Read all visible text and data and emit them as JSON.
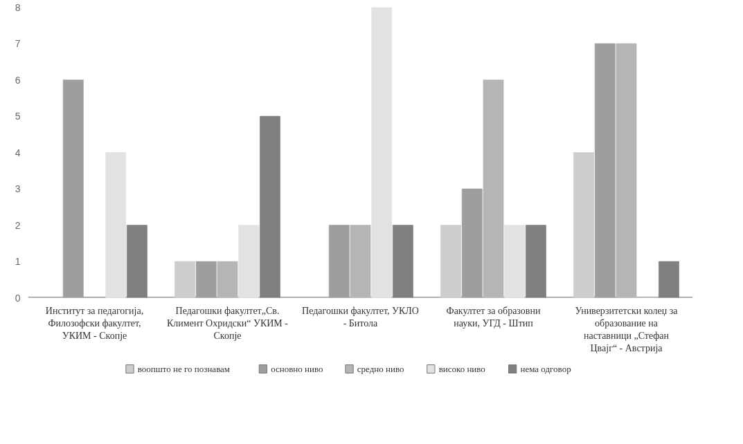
{
  "chart_data": {
    "type": "bar",
    "categories": [
      "Институт за педагогија, Филозофски факултет, УКИМ - Скопје",
      "Педагошки факултет„Св. Климент Охридски“ УКИМ - Скопје",
      "Педагошки факултет, УКЛО - Битола",
      "Факултет за образовни науки, УГД - Штип",
      "Универзитетски колеџ за образование на наставници „Стефан Цвајг“ - Австрија"
    ],
    "series": [
      {
        "name": "воопшто не го познавам",
        "color": "#cccccc",
        "values": [
          0,
          1,
          0,
          2,
          4
        ]
      },
      {
        "name": "основно ниво",
        "color": "#9e9e9e",
        "values": [
          6,
          1,
          2,
          3,
          7
        ]
      },
      {
        "name": "средно ниво",
        "color": "#b5b5b5",
        "values": [
          0,
          1,
          2,
          6,
          7
        ]
      },
      {
        "name": "високо ниво",
        "color": "#e2e2e2",
        "values": [
          4,
          2,
          8,
          2,
          0
        ]
      },
      {
        "name": "нема одговор",
        "color": "#7f7f7f",
        "values": [
          2,
          5,
          2,
          2,
          1
        ]
      }
    ],
    "ylim": [
      0,
      8
    ],
    "yticks": [
      0,
      1,
      2,
      3,
      4,
      5,
      6,
      7,
      8
    ],
    "grid": false,
    "legend": "bottom"
  }
}
